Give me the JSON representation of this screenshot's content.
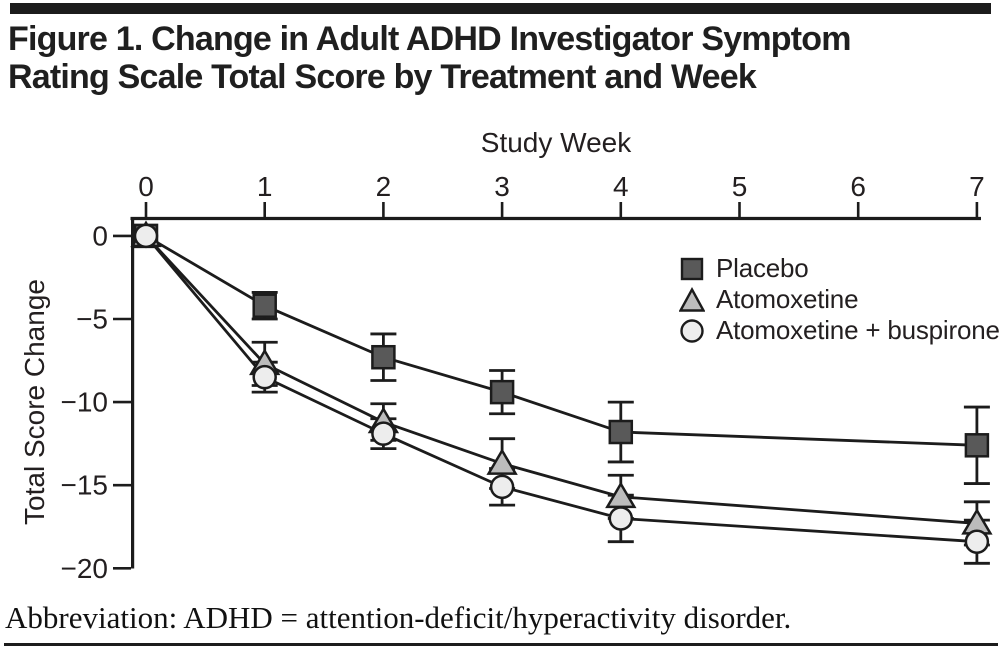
{
  "figure": {
    "title_line1": "Figure 1. Change in Adult ADHD Investigator Symptom",
    "title_line2": "Rating Scale Total Score by Treatment and Week",
    "footnote": "Abbreviation: ADHD = attention-deficit/hyperactivity disorder."
  },
  "chart_data": {
    "type": "line",
    "title": "Figure 1. Change in Adult ADHD Investigator Symptom Rating Scale Total Score by Treatment and Week",
    "xlabel": "Study Week",
    "ylabel": "Total Score Change",
    "xlim": [
      0,
      7
    ],
    "ylim": [
      -20,
      0
    ],
    "x_ticks": [
      0,
      1,
      2,
      3,
      4,
      5,
      6,
      7
    ],
    "y_ticks": [
      0,
      -5,
      -10,
      -15,
      -20
    ],
    "grid": false,
    "legend_position": "upper-right-inside",
    "axis_color": "#1c1c1c",
    "x": [
      0,
      1,
      2,
      3,
      4,
      7
    ],
    "series": [
      {
        "name": "Placebo",
        "marker": "square",
        "fill": "#595959",
        "values": [
          0,
          -4.2,
          -7.3,
          -9.4,
          -11.8,
          -12.6
        ],
        "errors": [
          0,
          0.8,
          1.4,
          1.3,
          1.8,
          2.3
        ]
      },
      {
        "name": "Atomoxetine",
        "marker": "triangle",
        "fill": "#bcbcbc",
        "values": [
          0,
          -7.7,
          -11.2,
          -13.7,
          -15.7,
          -17.3
        ],
        "errors": [
          0,
          1.3,
          1.1,
          1.5,
          1.3,
          1.3
        ]
      },
      {
        "name": "Atomoxetine + buspirone",
        "marker": "circle",
        "fill": "#ededed",
        "values": [
          0,
          -8.5,
          -11.9,
          -15.1,
          -17.0,
          -18.4
        ],
        "errors": [
          0,
          0.9,
          0.9,
          1.1,
          1.4,
          1.3
        ]
      }
    ]
  }
}
